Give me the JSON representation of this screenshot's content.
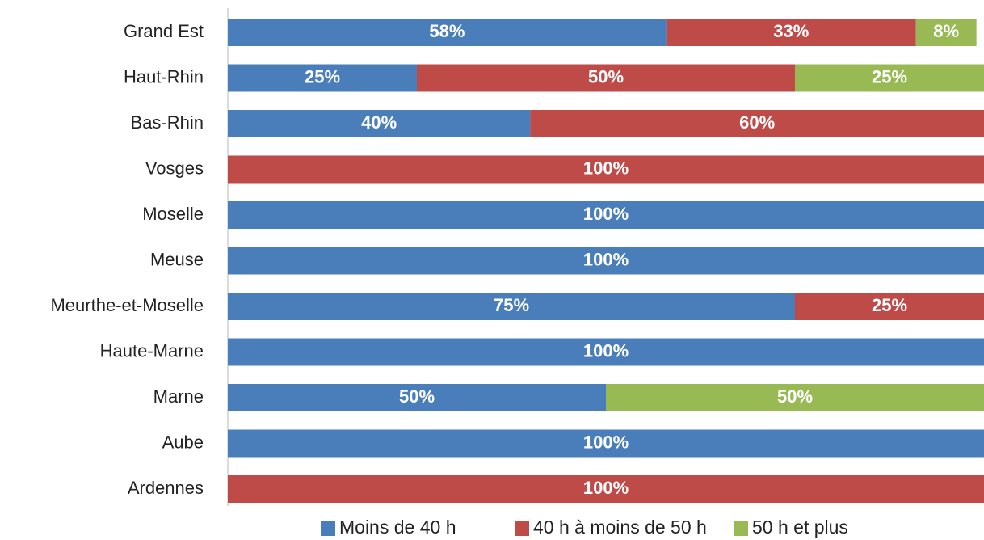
{
  "chart_data": {
    "type": "bar",
    "orientation": "horizontal",
    "stacked": true,
    "categories": [
      "Grand Est",
      "Haut-Rhin",
      "Bas-Rhin",
      "Vosges",
      "Moselle",
      "Meuse",
      "Meurthe-et-Moselle",
      "Haute-Marne",
      "Marne",
      "Aube",
      "Ardennes"
    ],
    "series": [
      {
        "name": "Moins de 40 h",
        "color": "#4a7ebb",
        "values": [
          58,
          25,
          40,
          0,
          100,
          100,
          75,
          100,
          50,
          100,
          0
        ]
      },
      {
        "name": "40 h à moins de 50 h",
        "color": "#be4b48",
        "values": [
          33,
          50,
          60,
          100,
          0,
          0,
          25,
          0,
          0,
          0,
          100
        ]
      },
      {
        "name": "50 h et plus",
        "color": "#98b954",
        "values": [
          8,
          25,
          0,
          0,
          0,
          0,
          0,
          0,
          50,
          0,
          0
        ]
      }
    ],
    "value_suffix": "%",
    "xlim": [
      0,
      100
    ],
    "grid": false,
    "legend_position": "bottom"
  }
}
